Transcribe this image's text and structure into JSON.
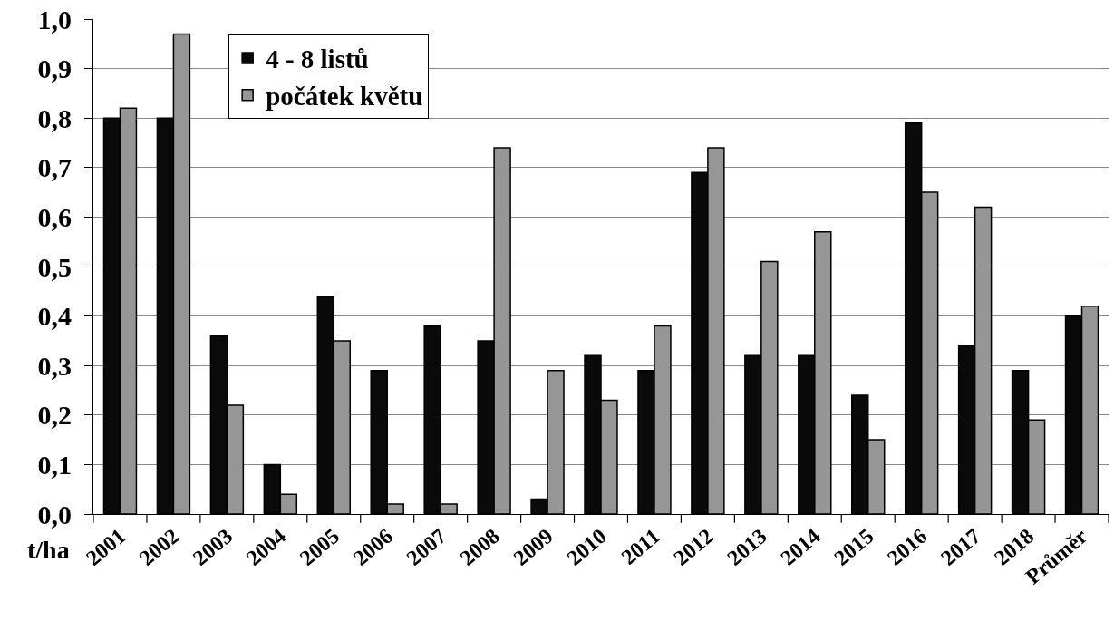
{
  "chart_data": {
    "type": "bar",
    "ylabel": "t/ha",
    "categories": [
      "2001",
      "2002",
      "2003",
      "2004",
      "2005",
      "2006",
      "2007",
      "2008",
      "2009",
      "2010",
      "2011",
      "2012",
      "2013",
      "2014",
      "2015",
      "2016",
      "2017",
      "2018",
      "Průměr"
    ],
    "series": [
      {
        "name": "4 - 8 listů",
        "color": "#0a0a0a",
        "values": [
          0.8,
          0.8,
          0.36,
          0.1,
          0.44,
          0.29,
          0.38,
          0.35,
          0.03,
          0.32,
          0.29,
          0.69,
          0.32,
          0.32,
          0.24,
          0.79,
          0.34,
          0.29,
          0.4
        ]
      },
      {
        "name": "počátek květu",
        "color": "#969696",
        "values": [
          0.82,
          0.97,
          0.22,
          0.04,
          0.35,
          0.02,
          0.02,
          0.74,
          0.29,
          0.23,
          0.38,
          0.74,
          0.51,
          0.57,
          0.15,
          0.65,
          0.62,
          0.19,
          0.42
        ]
      }
    ],
    "ylim": [
      0,
      1.0
    ],
    "yticks": [
      {
        "value": 0,
        "label": "0,0"
      },
      {
        "value": 0.1,
        "label": "0,1"
      },
      {
        "value": 0.2,
        "label": "0,2"
      },
      {
        "value": 0.3,
        "label": "0,3"
      },
      {
        "value": 0.4,
        "label": "0,4"
      },
      {
        "value": 0.5,
        "label": "0,5"
      },
      {
        "value": 0.6,
        "label": "0,6"
      },
      {
        "value": 0.7,
        "label": "0,7"
      },
      {
        "value": 0.8,
        "label": "0,8"
      },
      {
        "value": 0.9,
        "label": "0,9"
      },
      {
        "value": 1.0,
        "label": "1,0"
      }
    ],
    "grid": "y",
    "legend": "top left"
  }
}
